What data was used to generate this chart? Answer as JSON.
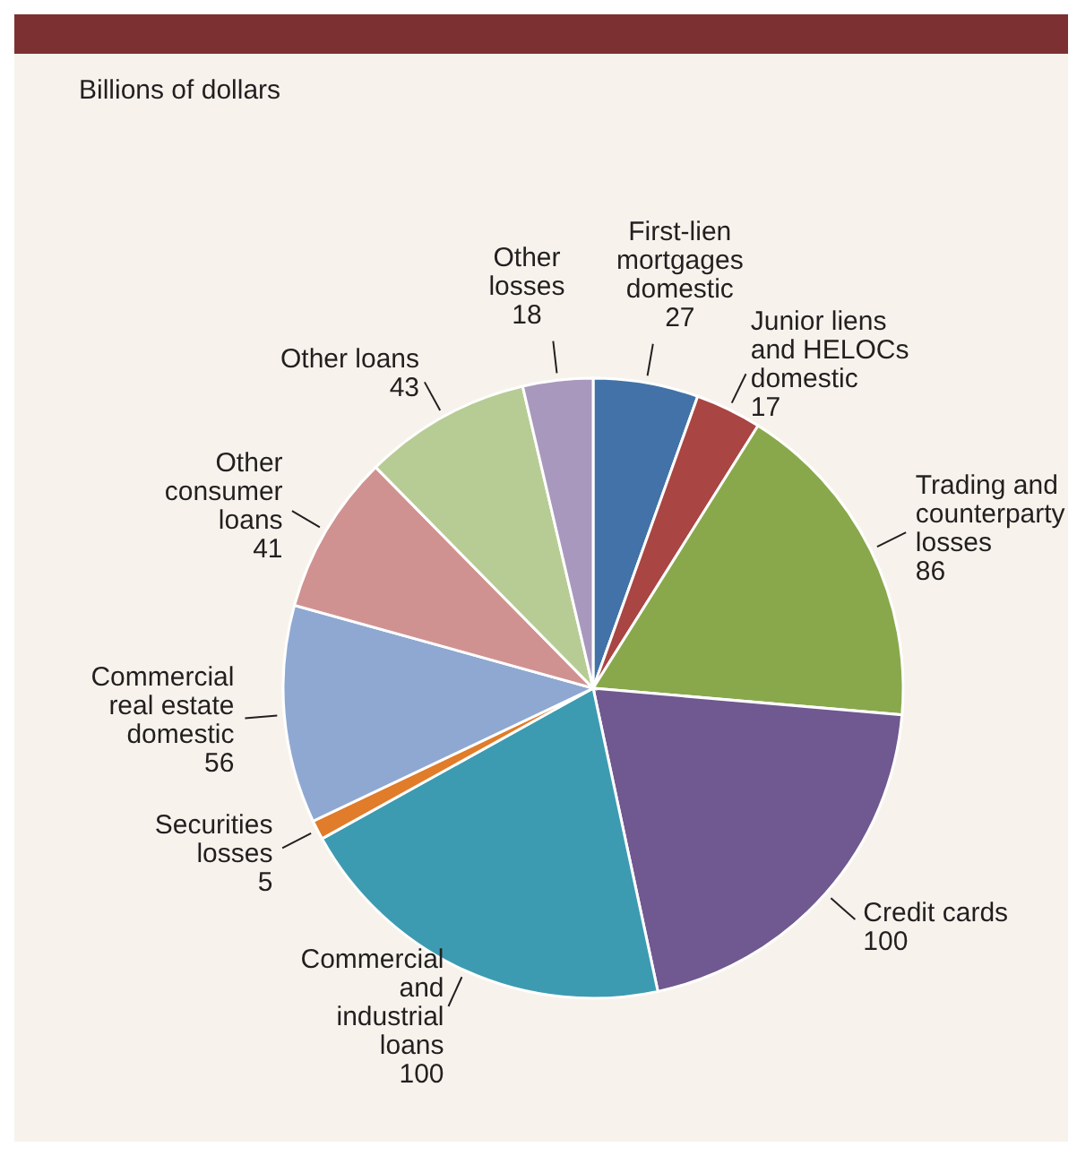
{
  "chart_data": {
    "type": "pie",
    "subtitle": "Billions of dollars",
    "categories": [
      "First-lien mortgages domestic",
      "Junior liens and HELOCs domestic",
      "Trading and counterparty losses",
      "Credit cards",
      "Commercial and industrial loans",
      "Securities losses",
      "Commercial real estate domestic",
      "Other consumer loans",
      "Other loans",
      "Other losses"
    ],
    "values": [
      27,
      17,
      86,
      100,
      100,
      5,
      56,
      41,
      43,
      18
    ],
    "colors": [
      "#4272a8",
      "#a94542",
      "#89a84c",
      "#705890",
      "#3d9bb1",
      "#e07c2a",
      "#8fa8d2",
      "#d09290",
      "#b7cc94",
      "#a898bd"
    ],
    "data_labels": true
  }
}
